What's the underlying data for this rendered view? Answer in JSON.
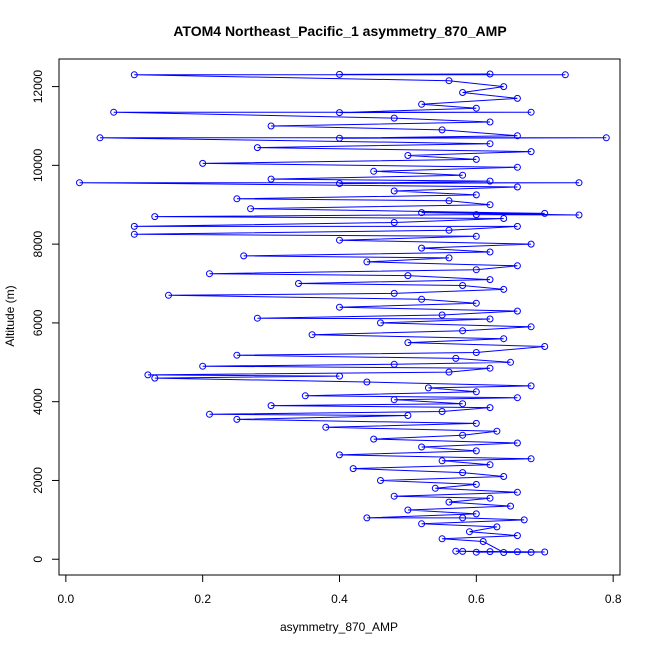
{
  "chart_data": {
    "type": "scatter",
    "title": "ATOM4 Northeast_Pacific_1 asymmetry_870_AMP",
    "xlabel": "asymmetry_870_AMP",
    "ylabel": "Altitude (m)",
    "xlim": [
      -0.01,
      0.81
    ],
    "ylim": [
      -400,
      12700
    ],
    "x_ticks": [
      0.0,
      0.2,
      0.4,
      0.6,
      0.8
    ],
    "x_tick_labels": [
      "0.0",
      "0.2",
      "0.4",
      "0.6",
      "0.8"
    ],
    "y_ticks": [
      0,
      2000,
      4000,
      6000,
      8000,
      10000,
      12000
    ],
    "y_tick_labels": [
      "0",
      "2000",
      "4000",
      "6000",
      "8000",
      "10000",
      "12000"
    ],
    "grid": false,
    "legend": "none",
    "marker": "open-circle",
    "connected_by_lines": true,
    "series": [
      {
        "color": "#0000ff",
        "points": [
          [
            0.6,
            180
          ],
          [
            0.66,
            190
          ],
          [
            0.58,
            200
          ],
          [
            0.68,
            175
          ],
          [
            0.62,
            195
          ],
          [
            0.57,
            205
          ],
          [
            0.7,
            185
          ],
          [
            0.64,
            170
          ],
          [
            0.61,
            450
          ],
          [
            0.55,
            520
          ],
          [
            0.66,
            600
          ],
          [
            0.59,
            700
          ],
          [
            0.63,
            820
          ],
          [
            0.52,
            900
          ],
          [
            0.67,
            1000
          ],
          [
            0.58,
            1050
          ],
          [
            0.44,
            1050
          ],
          [
            0.6,
            1150
          ],
          [
            0.5,
            1250
          ],
          [
            0.65,
            1350
          ],
          [
            0.56,
            1450
          ],
          [
            0.62,
            1550
          ],
          [
            0.48,
            1600
          ],
          [
            0.66,
            1700
          ],
          [
            0.54,
            1800
          ],
          [
            0.6,
            1900
          ],
          [
            0.46,
            2000
          ],
          [
            0.64,
            2100
          ],
          [
            0.58,
            2200
          ],
          [
            0.42,
            2300
          ],
          [
            0.62,
            2400
          ],
          [
            0.55,
            2500
          ],
          [
            0.68,
            2550
          ],
          [
            0.4,
            2650
          ],
          [
            0.6,
            2750
          ],
          [
            0.52,
            2850
          ],
          [
            0.66,
            2950
          ],
          [
            0.45,
            3050
          ],
          [
            0.58,
            3150
          ],
          [
            0.63,
            3250
          ],
          [
            0.38,
            3350
          ],
          [
            0.6,
            3450
          ],
          [
            0.25,
            3550
          ],
          [
            0.5,
            3650
          ],
          [
            0.21,
            3680
          ],
          [
            0.55,
            3750
          ],
          [
            0.62,
            3850
          ],
          [
            0.3,
            3900
          ],
          [
            0.58,
            3950
          ],
          [
            0.48,
            4050
          ],
          [
            0.66,
            4100
          ],
          [
            0.35,
            4150
          ],
          [
            0.6,
            4250
          ],
          [
            0.53,
            4350
          ],
          [
            0.68,
            4400
          ],
          [
            0.44,
            4500
          ],
          [
            0.13,
            4600
          ],
          [
            0.4,
            4650
          ],
          [
            0.12,
            4680
          ],
          [
            0.56,
            4750
          ],
          [
            0.62,
            4850
          ],
          [
            0.2,
            4900
          ],
          [
            0.48,
            4950
          ],
          [
            0.65,
            5000
          ],
          [
            0.57,
            5100
          ],
          [
            0.25,
            5180
          ],
          [
            0.6,
            5250
          ],
          [
            0.7,
            5400
          ],
          [
            0.5,
            5500
          ],
          [
            0.64,
            5600
          ],
          [
            0.36,
            5700
          ],
          [
            0.58,
            5800
          ],
          [
            0.68,
            5900
          ],
          [
            0.46,
            6000
          ],
          [
            0.62,
            6100
          ],
          [
            0.28,
            6120
          ],
          [
            0.55,
            6200
          ],
          [
            0.66,
            6300
          ],
          [
            0.4,
            6400
          ],
          [
            0.6,
            6500
          ],
          [
            0.52,
            6600
          ],
          [
            0.15,
            6700
          ],
          [
            0.48,
            6750
          ],
          [
            0.64,
            6850
          ],
          [
            0.58,
            6950
          ],
          [
            0.34,
            7000
          ],
          [
            0.62,
            7100
          ],
          [
            0.5,
            7200
          ],
          [
            0.21,
            7250
          ],
          [
            0.6,
            7350
          ],
          [
            0.66,
            7450
          ],
          [
            0.44,
            7550
          ],
          [
            0.56,
            7650
          ],
          [
            0.26,
            7700
          ],
          [
            0.62,
            7800
          ],
          [
            0.52,
            7900
          ],
          [
            0.68,
            8000
          ],
          [
            0.4,
            8100
          ],
          [
            0.6,
            8200
          ],
          [
            0.1,
            8250
          ],
          [
            0.56,
            8350
          ],
          [
            0.66,
            8450
          ],
          [
            0.1,
            8450
          ],
          [
            0.48,
            8550
          ],
          [
            0.64,
            8650
          ],
          [
            0.13,
            8700
          ],
          [
            0.6,
            8750
          ],
          [
            0.75,
            8740
          ],
          [
            0.52,
            8800
          ],
          [
            0.7,
            8780
          ],
          [
            0.27,
            8900
          ],
          [
            0.62,
            9000
          ],
          [
            0.56,
            9100
          ],
          [
            0.25,
            9150
          ],
          [
            0.6,
            9250
          ],
          [
            0.48,
            9350
          ],
          [
            0.66,
            9450
          ],
          [
            0.02,
            9560
          ],
          [
            0.75,
            9560
          ],
          [
            0.4,
            9540
          ],
          [
            0.62,
            9600
          ],
          [
            0.3,
            9650
          ],
          [
            0.58,
            9750
          ],
          [
            0.45,
            9850
          ],
          [
            0.66,
            9950
          ],
          [
            0.2,
            10050
          ],
          [
            0.6,
            10150
          ],
          [
            0.5,
            10250
          ],
          [
            0.68,
            10350
          ],
          [
            0.28,
            10450
          ],
          [
            0.62,
            10550
          ],
          [
            0.05,
            10700
          ],
          [
            0.79,
            10700
          ],
          [
            0.4,
            10690
          ],
          [
            0.66,
            10750
          ],
          [
            0.55,
            10900
          ],
          [
            0.3,
            11000
          ],
          [
            0.62,
            11100
          ],
          [
            0.48,
            11200
          ],
          [
            0.07,
            11350
          ],
          [
            0.68,
            11350
          ],
          [
            0.4,
            11340
          ],
          [
            0.6,
            11450
          ],
          [
            0.52,
            11550
          ],
          [
            0.66,
            11700
          ],
          [
            0.58,
            11850
          ],
          [
            0.64,
            12000
          ],
          [
            0.56,
            12150
          ],
          [
            0.1,
            12300
          ],
          [
            0.73,
            12300
          ],
          [
            0.4,
            12310
          ],
          [
            0.62,
            12320
          ]
        ]
      }
    ]
  }
}
